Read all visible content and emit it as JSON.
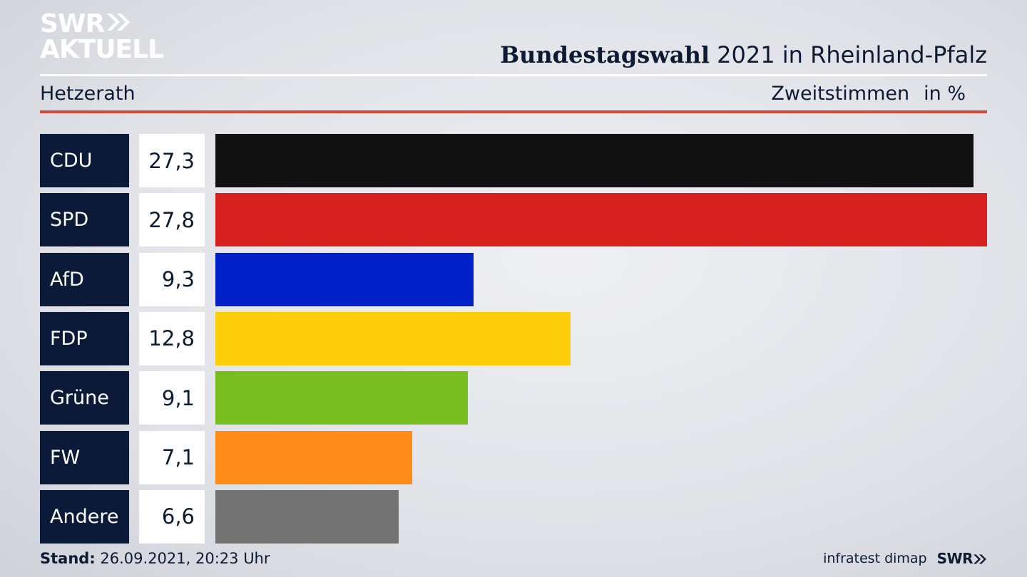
{
  "logo": {
    "line1": "SWR",
    "line2": "AKTUELL"
  },
  "header": {
    "title_bold": "Bundestagswahl",
    "title_rest": "2021 in Rheinland-Pfalz"
  },
  "location": "Hetzerath",
  "subhead": {
    "measure": "Zweitstimmen",
    "unit": "in %"
  },
  "colors": {
    "accent_red_rule": "#d34a3c",
    "party_box": "#0c1a3a"
  },
  "chart_data": {
    "type": "bar",
    "orientation": "horizontal",
    "categories": [
      "CDU",
      "SPD",
      "AfD",
      "FDP",
      "Grüne",
      "FW",
      "Andere"
    ],
    "values": [
      27.3,
      27.8,
      9.3,
      12.8,
      9.1,
      7.1,
      6.6
    ],
    "value_labels": [
      "27,3",
      "27,8",
      "9,3",
      "12,8",
      "9,1",
      "7,1",
      "6,6"
    ],
    "colors": [
      "#121212",
      "#d8201f",
      "#0020c8",
      "#fecd0a",
      "#78be1e",
      "#ff8c17",
      "#737373"
    ],
    "xlim": [
      0,
      27.8
    ],
    "grid": false,
    "legend": "none"
  },
  "footer": {
    "stand_label": "Stand:",
    "stand_value": "26.09.2021, 20:23 Uhr",
    "source": "infratest dimap",
    "brand": "SWR"
  }
}
